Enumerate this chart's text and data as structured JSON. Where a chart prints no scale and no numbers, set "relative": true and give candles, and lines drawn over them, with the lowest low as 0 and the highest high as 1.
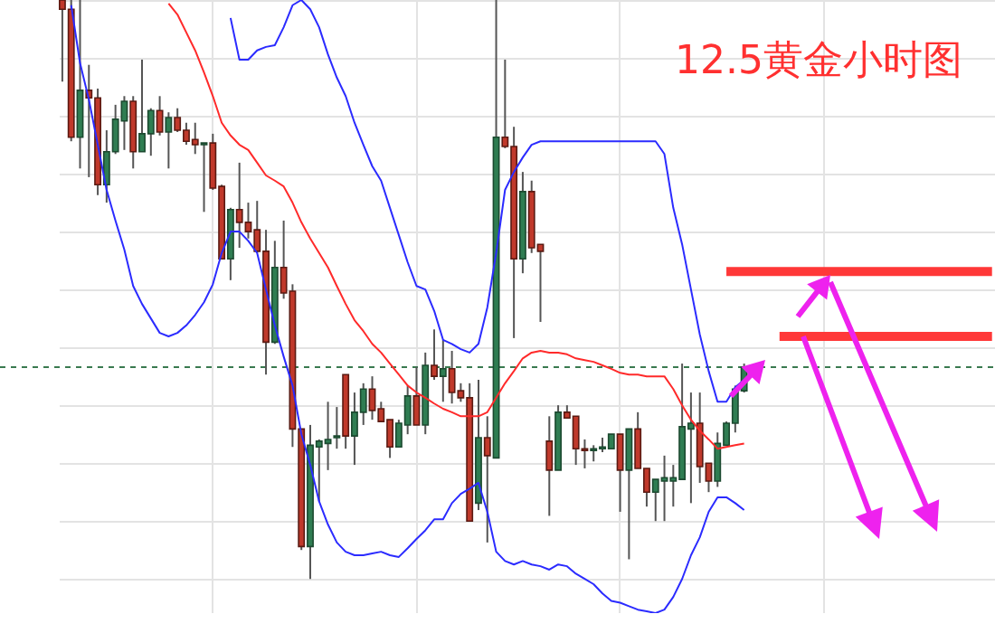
{
  "chart_data": {
    "type": "candlestick",
    "title": "12.5黄金小时图",
    "relative": true,
    "grid": true,
    "categories": [
      null,
      null,
      null,
      null,
      null,
      null,
      null,
      null,
      null,
      null,
      null,
      null,
      null,
      null,
      null,
      null,
      null,
      null,
      null,
      null,
      null,
      null,
      null,
      null,
      null,
      null,
      null,
      null,
      null,
      null,
      null,
      null,
      null,
      null,
      null,
      null,
      null,
      null,
      null,
      null,
      null,
      null,
      null,
      null,
      null,
      null,
      null,
      null,
      null,
      null,
      null,
      null,
      null,
      null,
      null,
      null,
      null,
      null,
      null,
      null,
      null,
      null,
      null,
      null,
      null,
      null,
      null,
      null,
      null,
      null,
      null,
      null,
      null,
      null,
      null,
      null,
      null,
      null,
      null,
      null,
      null,
      null,
      null,
      null,
      null,
      null,
      null,
      null,
      null,
      null,
      null,
      null,
      null,
      null,
      null,
      null,
      null,
      null,
      null,
      null,
      null,
      null,
      null,
      null,
      null,
      null
    ],
    "ohlc": [
      [
        1,
        1,
        0.859,
        0.984
      ],
      [
        0.984,
        1,
        0.756,
        0.763
      ],
      [
        0.763,
        1,
        0.709,
        0.844
      ],
      [
        0.844,
        0.888,
        0.694,
        0.831
      ],
      [
        0.831,
        0.847,
        0.663,
        0.681
      ],
      [
        0.681,
        0.775,
        0.65,
        0.738
      ],
      [
        0.738,
        0.819,
        0.734,
        0.794
      ],
      [
        0.791,
        0.834,
        0.741,
        0.825
      ],
      [
        0.825,
        0.834,
        0.709,
        0.738
      ],
      [
        0.738,
        0.897,
        0.738,
        0.769
      ],
      [
        0.769,
        0.813,
        0.731,
        0.809
      ],
      [
        0.809,
        0.834,
        0.766,
        0.772
      ],
      [
        0.772,
        0.806,
        0.709,
        0.797
      ],
      [
        0.797,
        0.813,
        0.772,
        0.775
      ],
      [
        0.775,
        0.788,
        0.75,
        0.756
      ],
      [
        0.759,
        0.788,
        0.734,
        0.75
      ],
      [
        0.75,
        0.753,
        0.634,
        0.753
      ],
      [
        0.753,
        0.769,
        0.672,
        0.675
      ],
      [
        0.678,
        0.681,
        0.553,
        0.553
      ],
      [
        0.553,
        0.641,
        0.516,
        0.638
      ],
      [
        0.638,
        0.719,
        0.572,
        0.616
      ],
      [
        0.616,
        0.65,
        0.588,
        0.6
      ],
      [
        0.603,
        0.653,
        0.563,
        0.566
      ],
      [
        0.566,
        0.603,
        0.353,
        0.409
      ],
      [
        0.409,
        0.584,
        0.406,
        0.538
      ],
      [
        0.538,
        0.619,
        0.484,
        0.494
      ],
      [
        0.497,
        0.509,
        0.228,
        0.259
      ],
      [
        0.259,
        0.259,
        0.05,
        0.056
      ],
      [
        0.056,
        0.266,
        0,
        0.231
      ],
      [
        0.228,
        0.241,
        0.134,
        0.238
      ],
      [
        0.234,
        0.306,
        0.188,
        0.241
      ],
      [
        0.244,
        0.297,
        0.225,
        0.247
      ],
      [
        0.353,
        0.353,
        0.225,
        0.247
      ],
      [
        0.247,
        0.322,
        0.197,
        0.288
      ],
      [
        0.288,
        0.338,
        0.266,
        0.328
      ],
      [
        0.328,
        0.35,
        0.275,
        0.291
      ],
      [
        0.294,
        0.306,
        0.272,
        0.272
      ],
      [
        0.275,
        0.275,
        0.209,
        0.228
      ],
      [
        0.228,
        0.275,
        0.228,
        0.269
      ],
      [
        0.266,
        0.334,
        0.25,
        0.316
      ],
      [
        0.316,
        0.366,
        0.266,
        0.266
      ],
      [
        0.266,
        0.391,
        0.25,
        0.369
      ],
      [
        0.369,
        0.431,
        0.344,
        0.35
      ],
      [
        0.35,
        0.413,
        0.306,
        0.363
      ],
      [
        0.363,
        0.394,
        0.303,
        0.322
      ],
      [
        0.325,
        0.338,
        0.306,
        0.313
      ],
      [
        0.313,
        0.338,
        0.1,
        0.1
      ],
      [
        0.131,
        0.344,
        0.119,
        0.244
      ],
      [
        0.244,
        0.281,
        0.063,
        0.213
      ],
      [
        0.209,
        1,
        0.209,
        0.763
      ],
      [
        0.763,
        0.897,
        0.744,
        0.747
      ],
      [
        0.747,
        0.781,
        0.416,
        0.553
      ],
      [
        0.553,
        0.703,
        0.528,
        0.669
      ],
      [
        0.669,
        0.688,
        0.563,
        0.572
      ],
      [
        0.578,
        0.578,
        0.444,
        0.566
      ],
      [
        0.238,
        0.281,
        0.109,
        0.188
      ],
      [
        0.188,
        0.3,
        0.188,
        0.288
      ],
      [
        0.288,
        0.3,
        0.278,
        0.278
      ],
      [
        0.281,
        0.281,
        0.197,
        0.225
      ],
      [
        0.225,
        0.241,
        0.191,
        0.222
      ],
      [
        0.222,
        0.231,
        0.203,
        0.225
      ],
      [
        0.225,
        0.244,
        0.219,
        0.228
      ],
      [
        0.225,
        0.25,
        0.225,
        0.25
      ],
      [
        0.25,
        0.25,
        0.116,
        0.188
      ],
      [
        0.188,
        0.259,
        0.034,
        0.259
      ],
      [
        0.259,
        0.288,
        0.191,
        0.191
      ],
      [
        0.191,
        0.191,
        0.125,
        0.15
      ],
      [
        0.15,
        0.172,
        0.1,
        0.172
      ],
      [
        0.169,
        0.213,
        0.1,
        0.175
      ],
      [
        0.169,
        0.197,
        0.125,
        0.175
      ],
      [
        0.172,
        0.372,
        0.172,
        0.263
      ],
      [
        0.259,
        0.322,
        0.131,
        0.269
      ],
      [
        0.269,
        0.322,
        0.166,
        0.194
      ],
      [
        0.2,
        0.2,
        0.15,
        0.169
      ],
      [
        0.169,
        0.253,
        0.159,
        0.234
      ],
      [
        0.231,
        0.272,
        0.231,
        0.269
      ],
      [
        0.269,
        0.334,
        0.253,
        0.328
      ],
      [
        0.325,
        0.372,
        0.322,
        0.366
      ],
      null,
      null,
      null,
      null,
      null,
      null,
      null,
      null,
      null,
      null,
      null,
      null,
      null,
      null,
      null,
      null,
      null,
      null,
      null,
      null,
      null,
      null,
      null,
      null,
      null,
      null,
      null,
      null
    ],
    "series": [
      {
        "type": "line",
        "color": "#2b2bff",
        "values": [
          null,
          null,
          null,
          null,
          null,
          null,
          null,
          null,
          null,
          null,
          null,
          null,
          null,
          null,
          null,
          null,
          null,
          null,
          null,
          0.969,
          0.897,
          0.897,
          0.913,
          0.919,
          0.922,
          0.953,
          0.991,
          1,
          0.984,
          0.953,
          0.906,
          0.866,
          0.834,
          0.788,
          0.75,
          0.713,
          0.688,
          0.641,
          0.594,
          0.547,
          0.506,
          0.5,
          0.463,
          0.413,
          0.406,
          0.397,
          0.391,
          0.406,
          0.469,
          0.563,
          0.672,
          0.703,
          0.728,
          0.75,
          0.756,
          0.756,
          0.756,
          0.756,
          0.756,
          0.756,
          0.756,
          0.756,
          0.756,
          0.756,
          0.756,
          0.756,
          0.756,
          0.756,
          0.734,
          0.641,
          0.578,
          0.5,
          0.422,
          0.359,
          0.306,
          0.306,
          0.331,
          0.344,
          null,
          null,
          null,
          null,
          null,
          null,
          null,
          null,
          null,
          null,
          null,
          null,
          null,
          null,
          null,
          null,
          null,
          null,
          null,
          null,
          null,
          null,
          null,
          null,
          null,
          null,
          null,
          null
        ]
      },
      {
        "type": "line",
        "color": "#ff2a2a",
        "values": [
          null,
          null,
          null,
          null,
          null,
          null,
          null,
          null,
          null,
          null,
          null,
          null,
          0.994,
          0.975,
          0.944,
          0.913,
          0.875,
          0.834,
          0.788,
          0.766,
          0.75,
          0.741,
          0.719,
          0.697,
          0.688,
          0.678,
          0.65,
          0.616,
          0.588,
          0.563,
          0.538,
          0.506,
          0.475,
          0.447,
          0.428,
          0.406,
          0.391,
          0.372,
          0.353,
          0.334,
          0.322,
          0.313,
          0.303,
          0.294,
          0.288,
          0.281,
          0.281,
          0.281,
          0.288,
          0.313,
          0.338,
          0.359,
          0.381,
          0.391,
          0.394,
          0.391,
          0.391,
          0.388,
          0.381,
          0.378,
          0.375,
          0.369,
          0.363,
          0.356,
          0.353,
          0.353,
          0.35,
          0.35,
          0.35,
          0.328,
          0.3,
          0.275,
          0.256,
          0.241,
          0.225,
          0.228,
          0.231,
          0.234,
          null,
          null,
          null,
          null,
          null,
          null,
          null,
          null,
          null,
          null,
          null,
          null,
          null,
          null,
          null,
          null,
          null,
          null,
          null,
          null,
          null,
          null,
          null,
          null,
          null,
          null,
          null,
          null
        ]
      },
      {
        "type": "line",
        "color": "#2b2bff",
        "values": [
          null,
          0.991,
          0.891,
          0.828,
          0.75,
          0.672,
          0.619,
          0.569,
          0.506,
          0.475,
          0.45,
          0.425,
          0.419,
          0.425,
          0.438,
          0.456,
          0.478,
          0.509,
          0.563,
          0.6,
          0.6,
          0.584,
          0.563,
          0.5,
          0.438,
          0.384,
          0.334,
          0.25,
          0.197,
          0.134,
          0.094,
          0.063,
          0.047,
          0.041,
          0.041,
          0.044,
          0.047,
          0.041,
          0.038,
          0.053,
          0.069,
          0.084,
          0.103,
          0.103,
          0.131,
          0.147,
          0.156,
          0.166,
          0.116,
          0.047,
          0.031,
          0.025,
          0.031,
          0.025,
          0.022,
          0.016,
          0.025,
          0.022,
          0.009,
          0,
          -0.009,
          -0.025,
          -0.038,
          -0.041,
          -0.047,
          -0.053,
          -0.056,
          -0.059,
          -0.053,
          -0.031,
          0,
          0.041,
          0.072,
          0.116,
          0.141,
          0.141,
          0.131,
          0.119,
          null,
          null,
          null,
          null,
          null,
          null,
          null,
          null,
          null,
          null,
          null,
          null,
          null,
          null,
          null,
          null,
          null,
          null,
          null,
          null,
          null,
          null,
          null,
          null,
          null,
          null,
          null,
          null
        ]
      },
      {
        "type": "line",
        "color": "#ff3838",
        "values": [
          null,
          null,
          null,
          null,
          null,
          null,
          null,
          null,
          null,
          null,
          null,
          null,
          null,
          null,
          null,
          null,
          null,
          null,
          null,
          null,
          null,
          null,
          null,
          null,
          null,
          null,
          null,
          null,
          null,
          null,
          null,
          null,
          null,
          null,
          null,
          null,
          null,
          null,
          null,
          null,
          null,
          null,
          null,
          null,
          null,
          null,
          null,
          null,
          null,
          null,
          null,
          null,
          null,
          null,
          null,
          null,
          null,
          null,
          null,
          null,
          null,
          null,
          null,
          null,
          null,
          null,
          null,
          null,
          null,
          null,
          null,
          null,
          null,
          null,
          null,
          0.531,
          0.531,
          0.531,
          0.531,
          0.531,
          0.531,
          0.531,
          0.531,
          0.531,
          0.531,
          0.531,
          0.531,
          0.531,
          0.531,
          0.531,
          0.531,
          0.531,
          0.531,
          0.531,
          0.531,
          0.531,
          0.531,
          0.531,
          0.531,
          0.531,
          0.531,
          0.531,
          0.531,
          0.531,
          0.531,
          0.531
        ]
      },
      {
        "type": "line",
        "color": "#ff3838",
        "values": [
          null,
          null,
          null,
          null,
          null,
          null,
          null,
          null,
          null,
          null,
          null,
          null,
          null,
          null,
          null,
          null,
          null,
          null,
          null,
          null,
          null,
          null,
          null,
          null,
          null,
          null,
          null,
          null,
          null,
          null,
          null,
          null,
          null,
          null,
          null,
          null,
          null,
          null,
          null,
          null,
          null,
          null,
          null,
          null,
          null,
          null,
          null,
          null,
          null,
          null,
          null,
          null,
          null,
          null,
          null,
          null,
          null,
          null,
          null,
          null,
          null,
          null,
          null,
          null,
          null,
          null,
          null,
          null,
          null,
          null,
          null,
          null,
          null,
          null,
          null,
          null,
          null,
          null,
          null,
          null,
          null,
          0.419,
          0.419,
          0.419,
          0.419,
          0.419,
          0.419,
          0.419,
          0.419,
          0.419,
          0.419,
          0.419,
          0.419,
          0.419,
          0.419,
          0.419,
          0.419,
          0.419,
          0.419,
          0.419,
          0.419,
          0.419,
          0.419,
          0.419,
          0.419,
          0.419
        ]
      }
    ],
    "ref_lines": [
      {
        "axis": "y",
        "value": 0.366,
        "color": "#3a7a50",
        "line_style": "dashed"
      }
    ]
  }
}
